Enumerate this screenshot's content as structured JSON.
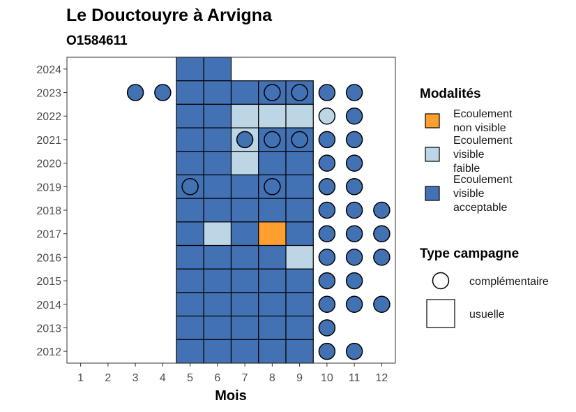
{
  "chart_data": {
    "type": "heatmap",
    "title": "Le Douctouyre à Arvigna",
    "subtitle": "O1584611",
    "xlabel": "Mois",
    "ylabel": "",
    "x_ticks": [
      "1",
      "2",
      "3",
      "4",
      "5",
      "6",
      "7",
      "8",
      "9",
      "10",
      "11",
      "12"
    ],
    "y_ticks": [
      "2012",
      "2013",
      "2014",
      "2015",
      "2016",
      "2017",
      "2018",
      "2019",
      "2020",
      "2021",
      "2022",
      "2023",
      "2024"
    ],
    "xlim": [
      0.5,
      12.5
    ],
    "ylim": [
      2011.5,
      2024.5
    ],
    "grid": false,
    "legend_position": "right",
    "colors": {
      "non_visible": "#ff9f2f",
      "visible_faible": "#bcd6e6",
      "visible_acceptable": "#4372b4",
      "outline": "#000000",
      "panel_border": "#333333"
    },
    "legend": {
      "modalites_title": "Modalités",
      "modalites": [
        {
          "key": "non_visible",
          "lines": [
            "Ecoulement",
            "non visible"
          ]
        },
        {
          "key": "visible_faible",
          "lines": [
            "Ecoulement",
            "visible",
            "faible"
          ]
        },
        {
          "key": "visible_acceptable",
          "lines": [
            "Ecoulement",
            "visible",
            "acceptable"
          ]
        }
      ],
      "type_title": "Type campagne",
      "types": [
        {
          "key": "complementaire",
          "label": "complémentaire"
        },
        {
          "key": "usuelle",
          "label": "usuelle"
        }
      ]
    },
    "usuelle": [
      {
        "year": 2024,
        "months": [
          5,
          6
        ],
        "values": [
          "visible_acceptable",
          "visible_acceptable"
        ]
      },
      {
        "year": 2023,
        "months": [
          5,
          6,
          7,
          8,
          9
        ],
        "values": [
          "visible_acceptable",
          "visible_acceptable",
          "visible_acceptable",
          "visible_acceptable",
          "visible_acceptable"
        ]
      },
      {
        "year": 2022,
        "months": [
          5,
          6,
          7,
          8,
          9
        ],
        "values": [
          "visible_acceptable",
          "visible_acceptable",
          "visible_faible",
          "visible_faible",
          "visible_faible"
        ]
      },
      {
        "year": 2021,
        "months": [
          5,
          6,
          7,
          8,
          9
        ],
        "values": [
          "visible_acceptable",
          "visible_acceptable",
          "visible_faible",
          "visible_acceptable",
          "visible_acceptable"
        ]
      },
      {
        "year": 2020,
        "months": [
          5,
          6,
          7,
          8,
          9
        ],
        "values": [
          "visible_acceptable",
          "visible_acceptable",
          "visible_faible",
          "visible_acceptable",
          "visible_acceptable"
        ]
      },
      {
        "year": 2019,
        "months": [
          5,
          6,
          7,
          8,
          9
        ],
        "values": [
          "visible_acceptable",
          "visible_acceptable",
          "visible_acceptable",
          "visible_acceptable",
          "visible_acceptable"
        ]
      },
      {
        "year": 2018,
        "months": [
          5,
          6,
          7,
          8,
          9
        ],
        "values": [
          "visible_acceptable",
          "visible_acceptable",
          "visible_acceptable",
          "visible_acceptable",
          "visible_acceptable"
        ]
      },
      {
        "year": 2017,
        "months": [
          5,
          6,
          7,
          8,
          9
        ],
        "values": [
          "visible_acceptable",
          "visible_faible",
          "visible_acceptable",
          "non_visible",
          "visible_acceptable"
        ]
      },
      {
        "year": 2016,
        "months": [
          5,
          6,
          7,
          8,
          9
        ],
        "values": [
          "visible_acceptable",
          "visible_acceptable",
          "visible_acceptable",
          "visible_acceptable",
          "visible_faible"
        ]
      },
      {
        "year": 2015,
        "months": [
          5,
          6,
          7,
          8,
          9
        ],
        "values": [
          "visible_acceptable",
          "visible_acceptable",
          "visible_acceptable",
          "visible_acceptable",
          "visible_acceptable"
        ]
      },
      {
        "year": 2014,
        "months": [
          5,
          6,
          7,
          8,
          9
        ],
        "values": [
          "visible_acceptable",
          "visible_acceptable",
          "visible_acceptable",
          "visible_acceptable",
          "visible_acceptable"
        ]
      },
      {
        "year": 2013,
        "months": [
          5,
          6,
          7,
          8,
          9
        ],
        "values": [
          "visible_acceptable",
          "visible_acceptable",
          "visible_acceptable",
          "visible_acceptable",
          "visible_acceptable"
        ]
      },
      {
        "year": 2012,
        "months": [
          5,
          6,
          7,
          8,
          9
        ],
        "values": [
          "visible_acceptable",
          "visible_acceptable",
          "visible_acceptable",
          "visible_acceptable",
          "visible_acceptable"
        ]
      }
    ],
    "complementaire": [
      {
        "year": 2023,
        "months": [
          3,
          4,
          8,
          9,
          10,
          11
        ],
        "values": [
          "visible_acceptable",
          "visible_acceptable",
          "visible_acceptable",
          "visible_acceptable",
          "visible_acceptable",
          "visible_acceptable"
        ]
      },
      {
        "year": 2022,
        "months": [
          10,
          11
        ],
        "values": [
          "visible_faible",
          "visible_acceptable"
        ]
      },
      {
        "year": 2021,
        "months": [
          7,
          8,
          9,
          10,
          11
        ],
        "values": [
          "visible_acceptable",
          "visible_acceptable",
          "visible_acceptable",
          "visible_acceptable",
          "visible_acceptable"
        ]
      },
      {
        "year": 2020,
        "months": [
          10,
          11
        ],
        "values": [
          "visible_acceptable",
          "visible_acceptable"
        ]
      },
      {
        "year": 2019,
        "months": [
          5,
          8,
          10,
          11
        ],
        "values": [
          "visible_acceptable",
          "visible_acceptable",
          "visible_acceptable",
          "visible_acceptable"
        ]
      },
      {
        "year": 2018,
        "months": [
          10,
          11,
          12
        ],
        "values": [
          "visible_acceptable",
          "visible_acceptable",
          "visible_acceptable"
        ]
      },
      {
        "year": 2017,
        "months": [
          10,
          11,
          12
        ],
        "values": [
          "visible_acceptable",
          "visible_acceptable",
          "visible_acceptable"
        ]
      },
      {
        "year": 2016,
        "months": [
          10,
          11,
          12
        ],
        "values": [
          "visible_acceptable",
          "visible_acceptable",
          "visible_acceptable"
        ]
      },
      {
        "year": 2015,
        "months": [
          10,
          11
        ],
        "values": [
          "visible_acceptable",
          "visible_acceptable"
        ]
      },
      {
        "year": 2014,
        "months": [
          10,
          11,
          12
        ],
        "values": [
          "visible_acceptable",
          "visible_acceptable",
          "visible_acceptable"
        ]
      },
      {
        "year": 2013,
        "months": [
          10
        ],
        "values": [
          "visible_acceptable"
        ]
      },
      {
        "year": 2012,
        "months": [
          10,
          11
        ],
        "values": [
          "visible_acceptable",
          "visible_acceptable"
        ]
      }
    ]
  }
}
